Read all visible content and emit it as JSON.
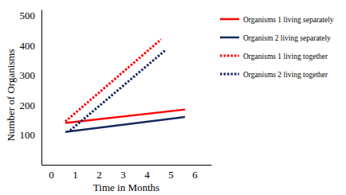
{
  "chart_data": {
    "type": "line",
    "x_label": "Time in Months",
    "y_label": "Number of Organisms",
    "xlim": [
      -0.4,
      6.7
    ],
    "xticks": [
      0,
      1,
      2,
      3,
      4,
      5,
      6
    ],
    "ylim": [
      0,
      520
    ],
    "yticks": [
      100,
      200,
      300,
      400,
      500
    ],
    "grid": false,
    "legend": "right",
    "series": [
      {
        "name": "Organisms 1 living separately",
        "color": "#ff0000",
        "line_style": "solid",
        "x": [
          0.6,
          5.6
        ],
        "values": [
          140,
          185
        ]
      },
      {
        "name": "Organism 2 living separately",
        "color": "#17275e",
        "line_style": "solid",
        "x": [
          0.6,
          5.6
        ],
        "values": [
          110,
          160
        ]
      },
      {
        "name": "Organisms 1 living together",
        "color": "#ff0000",
        "line_style": "dotted",
        "x": [
          0.6,
          4.6
        ],
        "values": [
          145,
          420
        ]
      },
      {
        "name": "Organisms 2 living together",
        "color": "#17275e",
        "line_style": "dotted",
        "x": [
          0.8,
          4.8
        ],
        "values": [
          115,
          385
        ]
      }
    ]
  }
}
